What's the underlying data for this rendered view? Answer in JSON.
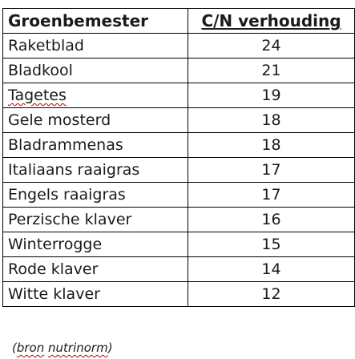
{
  "table": {
    "header": {
      "col1": "Groenbemester",
      "col2": "C/N verhouding"
    },
    "rows": [
      {
        "name": "Raketblad",
        "value": "24"
      },
      {
        "name": "Bladkool",
        "value": "21"
      },
      {
        "name": "Tagetes",
        "value": "19"
      },
      {
        "name": "Gele mosterd",
        "value": "18"
      },
      {
        "name": "Bladrammenas",
        "value": "18"
      },
      {
        "name": "Italiaans raaigras",
        "value": "17"
      },
      {
        "name": "Engels raaigras",
        "value": "17"
      },
      {
        "name": "Perzische klaver",
        "value": "16"
      },
      {
        "name": "Winterrogge",
        "value": "15"
      },
      {
        "name": "Rode klaver",
        "value": "14"
      },
      {
        "name": "Witte klaver",
        "value": "12"
      }
    ]
  },
  "source": {
    "open": "(",
    "word1": "bron",
    "word2": "nutrinorm",
    "close": ")"
  }
}
